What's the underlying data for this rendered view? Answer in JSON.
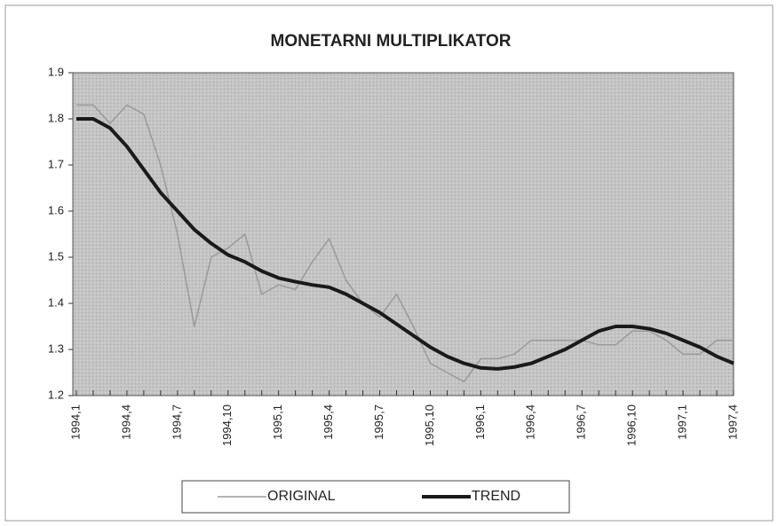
{
  "chart_data": {
    "type": "line",
    "title": "MONETARNI MULTIPLIKATOR",
    "categories": [
      "1994,1",
      null,
      null,
      "1994,4",
      null,
      null,
      "1994,7",
      null,
      null,
      "1994,10",
      null,
      null,
      "1995,1",
      null,
      null,
      "1995,4",
      null,
      null,
      "1995,7",
      null,
      null,
      "1995,10",
      null,
      null,
      "1996,1",
      null,
      null,
      "1996,4",
      null,
      null,
      "1996,7",
      null,
      null,
      "1996,10",
      null,
      null,
      "1997,1",
      null,
      null,
      "1997,4"
    ],
    "series": [
      {
        "name": "ORIGINAL",
        "color": "#9a9a9a",
        "values": [
          1.83,
          1.83,
          1.79,
          1.83,
          1.81,
          1.7,
          1.55,
          1.35,
          1.5,
          1.52,
          1.55,
          1.42,
          1.44,
          1.43,
          1.49,
          1.54,
          1.45,
          1.4,
          1.37,
          1.42,
          1.35,
          1.27,
          1.25,
          1.23,
          1.28,
          1.28,
          1.29,
          1.32,
          1.32,
          1.32,
          1.32,
          1.31,
          1.31,
          1.34,
          1.34,
          1.32,
          1.29,
          1.29,
          1.32,
          1.32
        ]
      },
      {
        "name": "TREND",
        "color": "#1a1a1a",
        "values": [
          1.8,
          1.8,
          1.78,
          1.74,
          1.69,
          1.64,
          1.6,
          1.56,
          1.53,
          1.505,
          1.49,
          1.47,
          1.455,
          1.447,
          1.44,
          1.435,
          1.42,
          1.4,
          1.38,
          1.355,
          1.33,
          1.305,
          1.285,
          1.27,
          1.26,
          1.258,
          1.262,
          1.27,
          1.285,
          1.3,
          1.32,
          1.34,
          1.35,
          1.35,
          1.345,
          1.335,
          1.32,
          1.305,
          1.285,
          1.27
        ]
      }
    ],
    "ylim": [
      1.2,
      1.9
    ],
    "yticks": [
      1.2,
      1.3,
      1.4,
      1.5,
      1.6,
      1.7,
      1.8,
      1.9
    ]
  }
}
